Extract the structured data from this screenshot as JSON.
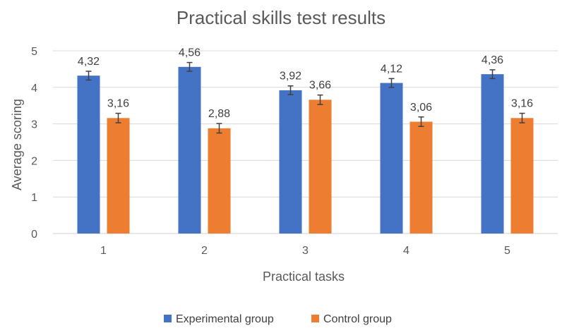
{
  "chart_data": {
    "type": "bar",
    "title": "Practical skills test results",
    "xlabel": "Practical tasks",
    "ylabel": "Average scoring",
    "categories": [
      "1",
      "2",
      "3",
      "4",
      "5"
    ],
    "ylim": [
      0,
      5
    ],
    "yticks": [
      0,
      1,
      2,
      3,
      4,
      5
    ],
    "grid": true,
    "legend_position": "bottom",
    "series": [
      {
        "name": "Experimental group",
        "color": "#4472C4",
        "values": [
          4.32,
          4.56,
          3.92,
          4.12,
          4.36
        ],
        "labels": [
          "4,32",
          "4,56",
          "3,92",
          "4,12",
          "4,36"
        ],
        "error": [
          0.12,
          0.12,
          0.12,
          0.12,
          0.12
        ]
      },
      {
        "name": "Control group",
        "color": "#ED7D31",
        "values": [
          3.16,
          2.88,
          3.66,
          3.06,
          3.16
        ],
        "labels": [
          "3,16",
          "2,88",
          "3,66",
          "3,06",
          "3,16"
        ],
        "error": [
          0.13,
          0.13,
          0.13,
          0.13,
          0.13
        ]
      }
    ]
  }
}
